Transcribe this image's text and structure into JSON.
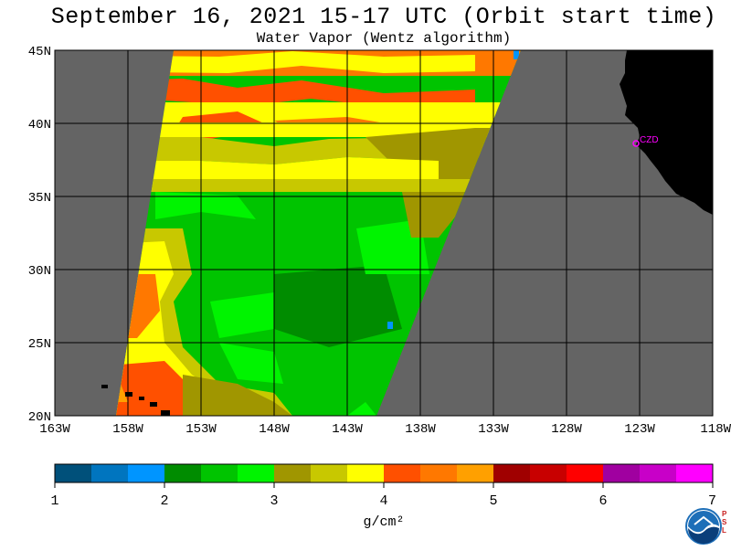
{
  "title": "September 16, 2021  15-17 UTC  (Orbit start time)",
  "subtitle": "Water Vapor (Wentz algorithm)",
  "station_label": "CZD",
  "units_label": "g/cm²",
  "map": {
    "lon_range": [
      -163,
      -118
    ],
    "lat_range": [
      20,
      45
    ],
    "lat_ticks": [
      "45N",
      "40N",
      "35N",
      "30N",
      "25N",
      "20N"
    ],
    "lon_ticks": [
      "163W",
      "158W",
      "153W",
      "148W",
      "143W",
      "138W",
      "133W",
      "128W",
      "123W",
      "118W"
    ],
    "land_color": "#000000",
    "no_data_color": "#646464",
    "grid_color": "#000000"
  },
  "colorbar": {
    "tick_labels": [
      "1",
      "2",
      "3",
      "4",
      "5",
      "6",
      "7"
    ],
    "range": [
      1,
      7
    ],
    "colors": [
      "#00507a",
      "#0075bf",
      "#0095ff",
      "#008c00",
      "#00c400",
      "#00f400",
      "#a09600",
      "#c8c800",
      "#ffff00",
      "#ff5000",
      "#ff7800",
      "#ffa000",
      "#a00000",
      "#c80000",
      "#ff0000",
      "#a000a0",
      "#c800c8",
      "#ff00ff"
    ]
  },
  "logo": {
    "icon": "noaa-logo",
    "side_text": "PSL"
  }
}
